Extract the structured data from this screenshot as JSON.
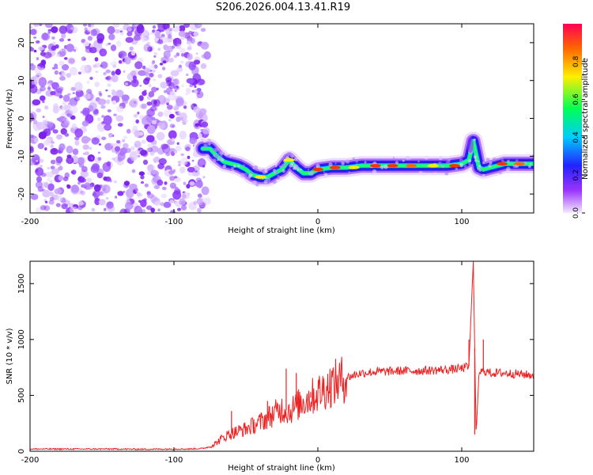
{
  "title": "S206.2026.004.13.41.R19",
  "chart_data": [
    {
      "type": "heatmap",
      "xlabel": "Height of straight line (km)",
      "ylabel": "Frequency (Hz)",
      "xlim": [
        -200,
        150
      ],
      "ylim": [
        -25,
        25
      ],
      "x_ticks": [
        "-200",
        "-100",
        "0",
        "100"
      ],
      "y_ticks": [
        "20",
        "10",
        "0",
        "-10",
        "-20"
      ],
      "colorbar": {
        "label": "Normalized spectral amplitude",
        "range": [
          0,
          1
        ],
        "ticks": [
          "0.0",
          "0.2",
          "0.4",
          "0.6",
          "0.8"
        ]
      },
      "noise_region_x": [
        -200,
        -80
      ],
      "ridge": [
        [
          -80,
          -8
        ],
        [
          -75,
          -8
        ],
        [
          -70,
          -10
        ],
        [
          -65,
          -11.5
        ],
        [
          -60,
          -12
        ],
        [
          -55,
          -12.5
        ],
        [
          -50,
          -13.5
        ],
        [
          -45,
          -15
        ],
        [
          -40,
          -15.5
        ],
        [
          -35,
          -15.5
        ],
        [
          -30,
          -14.5
        ],
        [
          -25,
          -13.5
        ],
        [
          -20,
          -11
        ],
        [
          -15,
          -13
        ],
        [
          -10,
          -14.5
        ],
        [
          -5,
          -14.5
        ],
        [
          0,
          -13.5
        ],
        [
          10,
          -13
        ],
        [
          20,
          -13
        ],
        [
          30,
          -12.5
        ],
        [
          40,
          -12.5
        ],
        [
          50,
          -12.5
        ],
        [
          60,
          -12.5
        ],
        [
          70,
          -12.5
        ],
        [
          80,
          -12.5
        ],
        [
          90,
          -12.5
        ],
        [
          100,
          -12
        ],
        [
          105,
          -11
        ],
        [
          108,
          -6
        ],
        [
          112,
          -13
        ],
        [
          115,
          -13.5
        ],
        [
          120,
          -13
        ],
        [
          130,
          -12
        ],
        [
          140,
          -12
        ],
        [
          150,
          -12
        ]
      ]
    },
    {
      "type": "line",
      "xlabel": "Height of straight line (km)",
      "ylabel": "SNR (10 * v/v)",
      "xlim": [
        -200,
        150
      ],
      "ylim": [
        0,
        1700
      ],
      "x_ticks": [
        "-200",
        "-100",
        "0",
        "100"
      ],
      "y_ticks": [
        "0",
        "500",
        "1000",
        "1500"
      ],
      "color": "#ee2222",
      "series": [
        {
          "x": [
            -200,
            -180,
            -160,
            -140,
            -120,
            -100,
            -90,
            -80,
            -75,
            -70,
            -65,
            -60,
            -55,
            -50,
            -45,
            -40,
            -35,
            -30,
            -25,
            -20,
            -15,
            -10,
            -5,
            0,
            10,
            20,
            30,
            40,
            50,
            60,
            70,
            80,
            90,
            100,
            105,
            108,
            110,
            112,
            115,
            120,
            130,
            140,
            150
          ],
          "y": [
            20,
            20,
            20,
            20,
            18,
            20,
            20,
            25,
            40,
            80,
            130,
            160,
            180,
            200,
            230,
            260,
            300,
            340,
            380,
            360,
            400,
            450,
            480,
            520,
            600,
            660,
            700,
            710,
            715,
            720,
            720,
            725,
            730,
            740,
            760,
            1700,
            150,
            700,
            720,
            700,
            700,
            690,
            680
          ]
        }
      ],
      "spikes": [
        {
          "x": -60,
          "y": 360
        },
        {
          "x": -35,
          "y": 450
        },
        {
          "x": -22,
          "y": 740
        },
        {
          "x": -15,
          "y": 700
        },
        {
          "x": -5,
          "y": 530
        },
        {
          "x": 105,
          "y": 1000
        },
        {
          "x": 108,
          "y": 1700
        },
        {
          "x": 109,
          "y": 150
        },
        {
          "x": 115,
          "y": 1000
        }
      ]
    }
  ]
}
